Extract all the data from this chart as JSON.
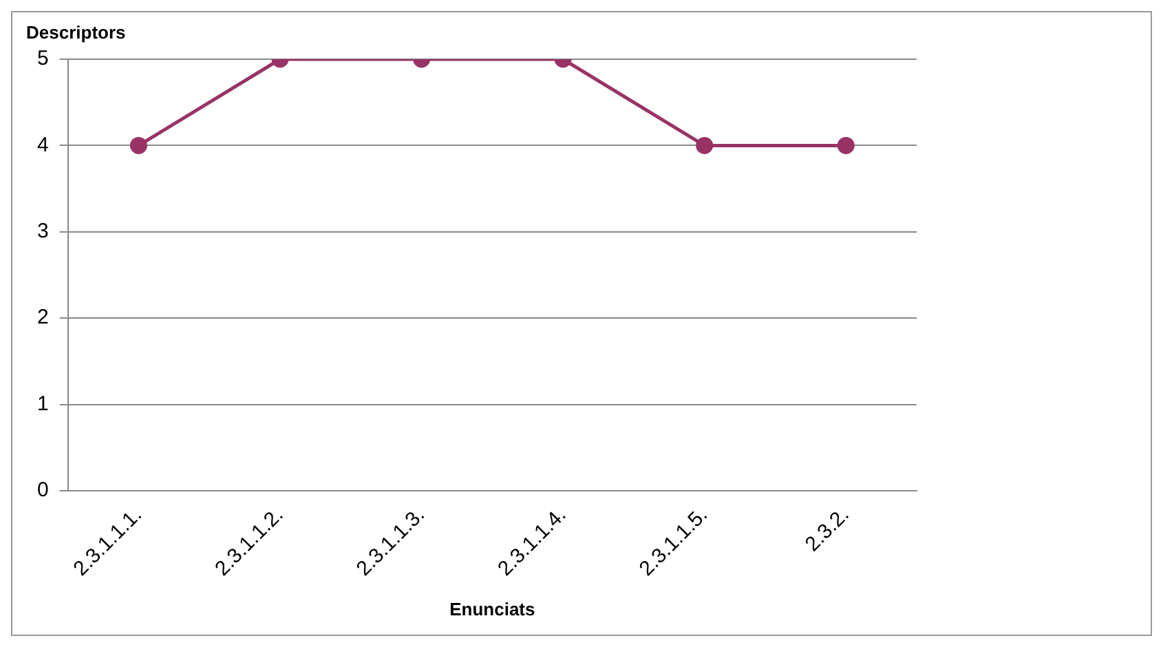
{
  "chart_data": {
    "type": "line",
    "xlabel": "Enunciats",
    "ylabel": "Descriptors",
    "categories": [
      "2.3.1.1.1.",
      "2.3.1.1.2.",
      "2.3.1.1.3.",
      "2.3.1.1.4.",
      "2.3.1.1.5.",
      "2.3.2."
    ],
    "series": [
      {
        "color": "#993366",
        "values": [
          4,
          5,
          5,
          5,
          4,
          4
        ]
      }
    ],
    "ylim": [
      0,
      5
    ],
    "yticks": [
      0,
      1,
      2,
      3,
      4,
      5
    ],
    "grid": "y",
    "legend": false,
    "marker": "circle",
    "line_style": "solid"
  }
}
